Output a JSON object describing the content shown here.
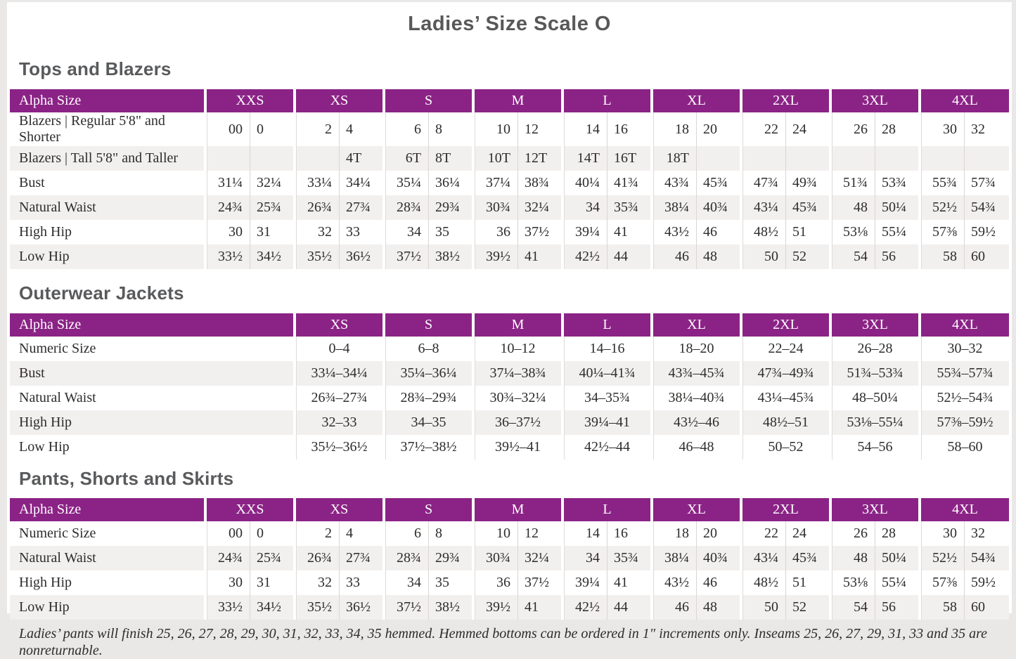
{
  "page": {
    "title": "Ladies’ Size Scale O",
    "footnote": "Ladies’ pants will finish 25, 26, 27, 28, 29, 30, 31, 32, 33, 34, 35 hemmed. Hemmed bottoms can be ordered in 1\" increments only. Inseams 25, 26, 27, 29, 31, 33 and 35 are nonreturnable."
  },
  "colors": {
    "header_purple": "#8B2386",
    "stripe_gray": "#F2F0EF",
    "heading_gray": "#595A5C",
    "divider_gray": "#D9D6D3",
    "page_frame": "#E9E8E7"
  },
  "tables": [
    {
      "section_title": "Tops and Blazers",
      "header_label": "Alpha Size",
      "split": true,
      "sizes": [
        "XXS",
        "XS",
        "S",
        "M",
        "L",
        "XL",
        "2XL",
        "3XL",
        "4XL"
      ],
      "rows": [
        {
          "label": "Blazers | Regular 5'8\" and Shorter",
          "values": [
            "00",
            "0",
            "2",
            "4",
            "6",
            "8",
            "10",
            "12",
            "14",
            "16",
            "18",
            "20",
            "22",
            "24",
            "26",
            "28",
            "30",
            "32"
          ]
        },
        {
          "label": "Blazers | Tall 5'8\" and Taller",
          "values": [
            "",
            "",
            "",
            "4T",
            "6T",
            "8T",
            "10T",
            "12T",
            "14T",
            "16T",
            "18T",
            "",
            "",
            "",
            "",
            "",
            "",
            ""
          ]
        },
        {
          "label": "Bust",
          "values": [
            "31¼",
            "32¼",
            "33¼",
            "34¼",
            "35¼",
            "36¼",
            "37¼",
            "38¾",
            "40¼",
            "41¾",
            "43¾",
            "45¾",
            "47¾",
            "49¾",
            "51¾",
            "53¾",
            "55¾",
            "57¾"
          ]
        },
        {
          "label": "Natural Waist",
          "values": [
            "24¾",
            "25¾",
            "26¾",
            "27¾",
            "28¾",
            "29¾",
            "30¾",
            "32¼",
            "34",
            "35¾",
            "38¼",
            "40¾",
            "43¼",
            "45¾",
            "48",
            "50¼",
            "52½",
            "54¾"
          ]
        },
        {
          "label": "High Hip",
          "values": [
            "30",
            "31",
            "32",
            "33",
            "34",
            "35",
            "36",
            "37½",
            "39¼",
            "41",
            "43½",
            "46",
            "48½",
            "51",
            "53⅛",
            "55¼",
            "57⅜",
            "59½"
          ]
        },
        {
          "label": "Low Hip",
          "values": [
            "33½",
            "34½",
            "35½",
            "36½",
            "37½",
            "38½",
            "39½",
            "41",
            "42½",
            "44",
            "46",
            "48",
            "50",
            "52",
            "54",
            "56",
            "58",
            "60"
          ]
        }
      ]
    },
    {
      "section_title": "Outerwear Jackets",
      "header_label": "Alpha Size",
      "split": false,
      "sizes": [
        "XS",
        "S",
        "M",
        "L",
        "XL",
        "2XL",
        "3XL",
        "4XL"
      ],
      "rows": [
        {
          "label": "Numeric Size",
          "values": [
            "0–4",
            "6–8",
            "10–12",
            "14–16",
            "18–20",
            "22–24",
            "26–28",
            "30–32"
          ]
        },
        {
          "label": "Bust",
          "values": [
            "33¼–34¼",
            "35¼–36¼",
            "37¼–38¾",
            "40¼–41¾",
            "43¾–45¾",
            "47¾–49¾",
            "51¾–53¾",
            "55¾–57¾"
          ]
        },
        {
          "label": "Natural Waist",
          "values": [
            "26¾–27¾",
            "28¾–29¾",
            "30¾–32¼",
            "34–35¾",
            "38¼–40¾",
            "43¼–45¾",
            "48–50¼",
            "52½–54¾"
          ]
        },
        {
          "label": "High Hip",
          "values": [
            "32–33",
            "34–35",
            "36–37½",
            "39¼–41",
            "43½–46",
            "48½–51",
            "53⅛–55¼",
            "57⅜–59½"
          ]
        },
        {
          "label": "Low Hip",
          "values": [
            "35½–36½",
            "37½–38½",
            "39½–41",
            "42½–44",
            "46–48",
            "50–52",
            "54–56",
            "58–60"
          ]
        }
      ]
    },
    {
      "section_title": "Pants, Shorts and Skirts",
      "header_label": "Alpha Size",
      "split": true,
      "sizes": [
        "XXS",
        "XS",
        "S",
        "M",
        "L",
        "XL",
        "2XL",
        "3XL",
        "4XL"
      ],
      "rows": [
        {
          "label": "Numeric Size",
          "values": [
            "00",
            "0",
            "2",
            "4",
            "6",
            "8",
            "10",
            "12",
            "14",
            "16",
            "18",
            "20",
            "22",
            "24",
            "26",
            "28",
            "30",
            "32"
          ]
        },
        {
          "label": "Natural Waist",
          "values": [
            "24¾",
            "25¾",
            "26¾",
            "27¾",
            "28¾",
            "29¾",
            "30¾",
            "32¼",
            "34",
            "35¾",
            "38¼",
            "40¾",
            "43¼",
            "45¾",
            "48",
            "50¼",
            "52½",
            "54¾"
          ]
        },
        {
          "label": "High Hip",
          "values": [
            "30",
            "31",
            "32",
            "33",
            "34",
            "35",
            "36",
            "37½",
            "39¼",
            "41",
            "43½",
            "46",
            "48½",
            "51",
            "53⅛",
            "55¼",
            "57⅜",
            "59½"
          ]
        },
        {
          "label": "Low Hip",
          "values": [
            "33½",
            "34½",
            "35½",
            "36½",
            "37½",
            "38½",
            "39½",
            "41",
            "42½",
            "44",
            "46",
            "48",
            "50",
            "52",
            "54",
            "56",
            "58",
            "60"
          ]
        }
      ]
    }
  ]
}
